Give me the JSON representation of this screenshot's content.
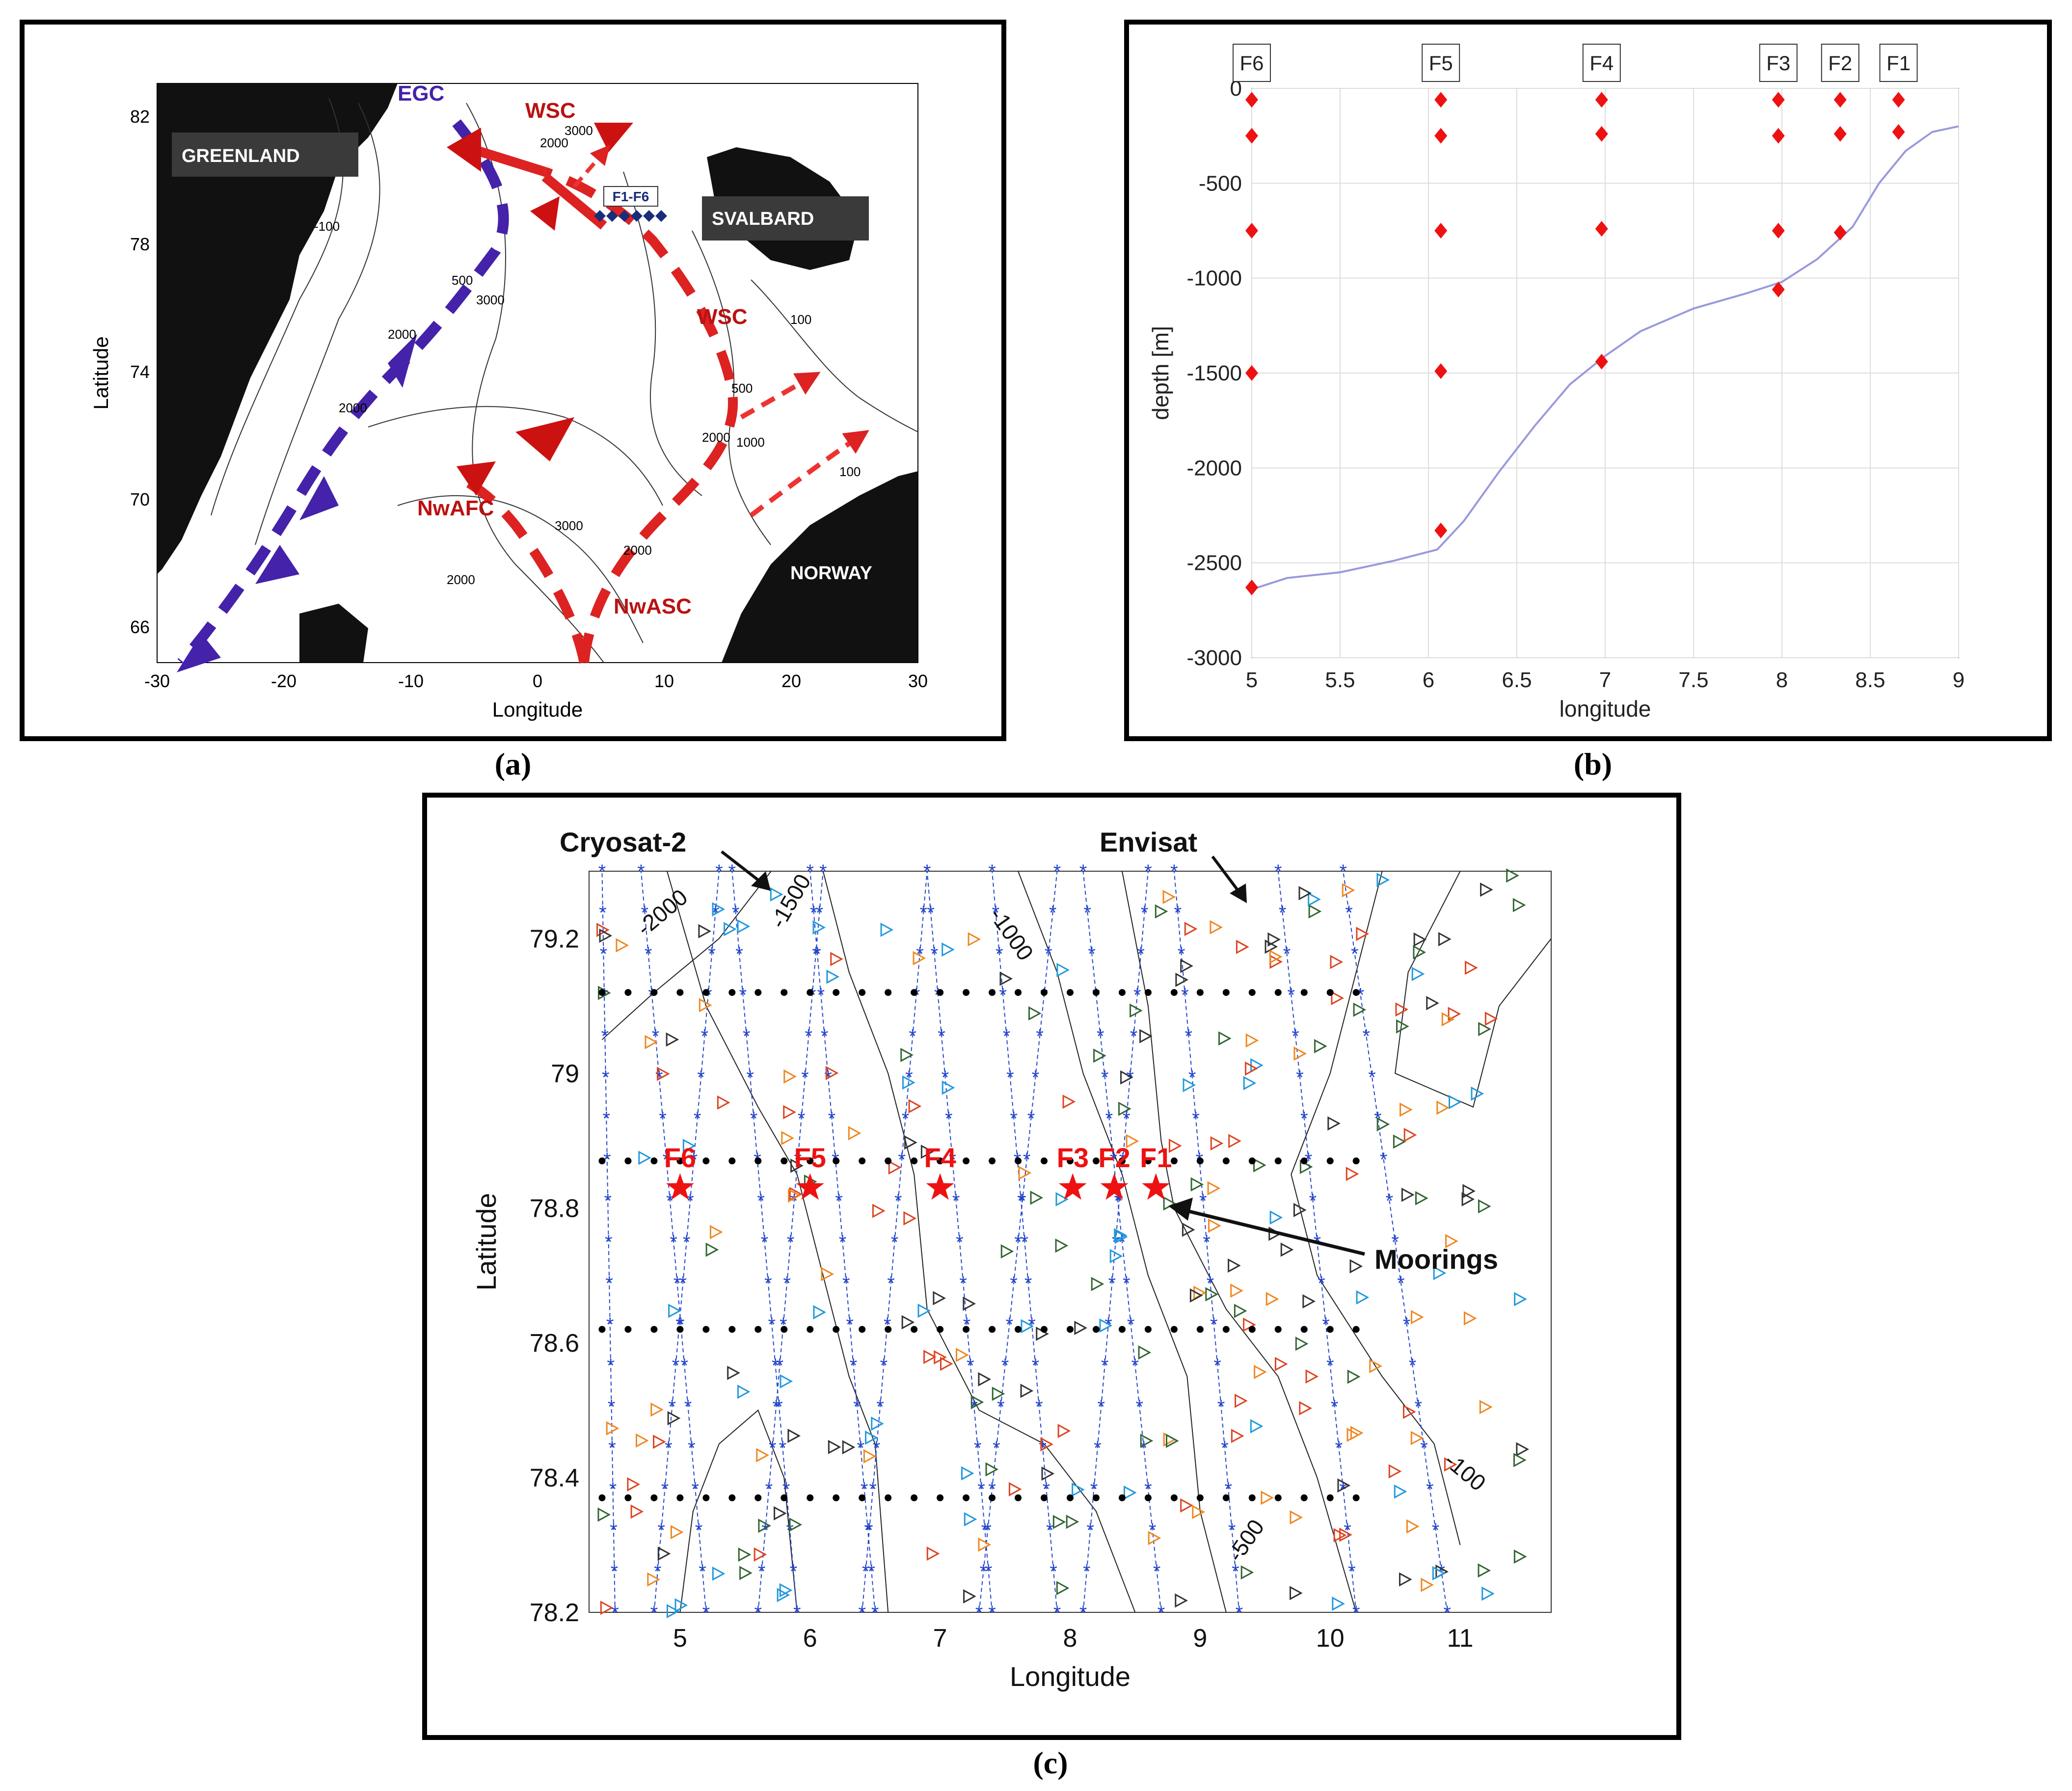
{
  "captions": {
    "a": "(a)",
    "b": "(b)",
    "c": "(c)"
  },
  "colors": {
    "land": "#111111",
    "atlantic_water": "#dd2222",
    "polar_water": "#4422aa",
    "mooring": "#ee1111",
    "cryosat_track": "#2244cc",
    "contour": "#222222",
    "profile_line": "#9999dd"
  },
  "panel_a": {
    "xlabel": "Longitude",
    "ylabel": "Latitude",
    "xticks": [
      "-30",
      "-20",
      "-10",
      "0",
      "10",
      "20",
      "30"
    ],
    "yticks": [
      "82",
      "78",
      "74",
      "70",
      "66"
    ],
    "land_labels": {
      "greenland": "GREENLAND",
      "svalbard": "SVALBARD",
      "norway": "NORWAY"
    },
    "current_labels": {
      "egc": "EGC",
      "wsc_top": "WSC",
      "wsc_right": "WSC",
      "nwafc": "NwAFC",
      "nwasc": "NwASC"
    },
    "section_label": "F1-F6",
    "isobaths": [
      "3000",
      "2000",
      "100",
      "-100",
      "500",
      "3000",
      "2000",
      "2000",
      "500",
      "2000",
      "1000",
      "100",
      "3000",
      "2000",
      "2000"
    ]
  },
  "panel_b": {
    "xlabel": "longitude",
    "ylabel": "depth [m]",
    "xlim": [
      5,
      9
    ],
    "ylim": [
      -3000,
      0
    ],
    "xticks": [
      "5",
      "5.5",
      "6",
      "6.5",
      "7",
      "7.5",
      "8",
      "8.5",
      "9"
    ],
    "yticks": [
      "0",
      "-500",
      "-1000",
      "-1500",
      "-2000",
      "-2500",
      "-3000"
    ],
    "bathymetry": {
      "lon": [
        5.0,
        5.2,
        5.5,
        5.8,
        6.05,
        6.2,
        6.4,
        6.6,
        6.8,
        7.0,
        7.2,
        7.5,
        7.8,
        8.0,
        8.2,
        8.4,
        8.55,
        8.7,
        8.85,
        9.0
      ],
      "depth": [
        -2640,
        -2580,
        -2550,
        -2490,
        -2430,
        -2280,
        -2020,
        -1780,
        -1560,
        -1410,
        -1280,
        -1160,
        -1080,
        -1020,
        -900,
        -730,
        -500,
        -330,
        -230,
        -200
      ]
    },
    "moorings": [
      {
        "name": "F6",
        "lon": 5.0,
        "instruments": [
          -60,
          -250,
          -750,
          -1500,
          -2630
        ]
      },
      {
        "name": "F5",
        "lon": 6.07,
        "instruments": [
          -60,
          -250,
          -750,
          -1490,
          -2330
        ]
      },
      {
        "name": "F4",
        "lon": 6.98,
        "instruments": [
          -60,
          -240,
          -740,
          -1440
        ]
      },
      {
        "name": "F3",
        "lon": 7.98,
        "instruments": [
          -60,
          -250,
          -750,
          -1060
        ]
      },
      {
        "name": "F2",
        "lon": 8.33,
        "instruments": [
          -60,
          -240,
          -760
        ]
      },
      {
        "name": "F1",
        "lon": 8.66,
        "instruments": [
          -60,
          -230
        ]
      }
    ]
  },
  "panel_c": {
    "xlabel": "Longitude",
    "ylabel": "Latitude",
    "xlim": [
      4.3,
      11.7
    ],
    "ylim": [
      78.2,
      79.3
    ],
    "xticks": [
      "5",
      "6",
      "7",
      "8",
      "9",
      "10",
      "11"
    ],
    "yticks": [
      "79.2",
      "79",
      "78.8",
      "78.6",
      "78.4",
      "78.2"
    ],
    "annotations": {
      "cryosat": "Cryosat-2",
      "envisat": "Envisat",
      "moorings": "Moorings"
    },
    "contour_labels": [
      "-2000",
      "-1500",
      "-1000",
      "-100",
      "-500"
    ],
    "moorings": [
      {
        "name": "F6",
        "lon": 5.0,
        "lat": 78.83
      },
      {
        "name": "F5",
        "lon": 6.0,
        "lat": 78.83
      },
      {
        "name": "F4",
        "lon": 7.0,
        "lat": 78.83
      },
      {
        "name": "F3",
        "lon": 8.02,
        "lat": 78.83
      },
      {
        "name": "F2",
        "lon": 8.34,
        "lat": 78.83
      },
      {
        "name": "F1",
        "lon": 8.66,
        "lat": 78.83
      }
    ],
    "dotted_lines_lat": [
      79.12,
      78.87,
      78.62,
      78.37
    ],
    "dotted_lines_lon_range": [
      4.4,
      10.2
    ]
  }
}
